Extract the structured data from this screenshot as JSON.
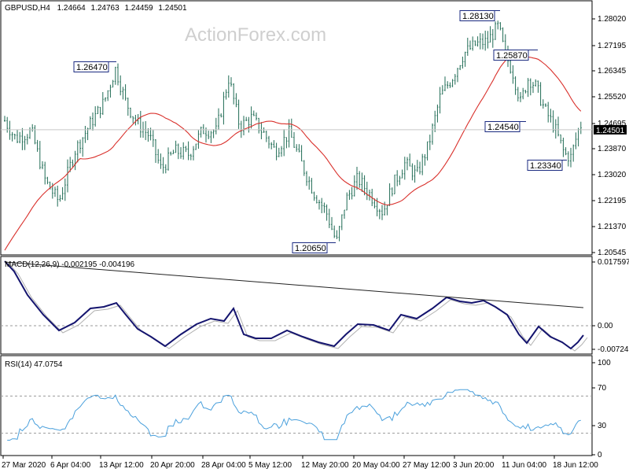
{
  "header": {
    "symbol": "GBPUSD,H4",
    "open": "1.24664",
    "high": "1.24763",
    "low": "1.24459",
    "close": "1.24501"
  },
  "watermark": "ActionForex.com",
  "colors": {
    "candle": "#1f6b54",
    "ma": "#d9302b",
    "macd": "#14146e",
    "macd_signal": "#b0b0b0",
    "rsi": "#4aa0dc",
    "trendline": "#222222",
    "last_price_bg": "#000000",
    "grid": "#c8c8c8"
  },
  "chart_data": [
    {
      "type": "candlestick",
      "panel": "price",
      "y_ticks": [
        "1.28020",
        "1.27195",
        "1.26345",
        "1.25520",
        "1.24695",
        "1.23870",
        "1.23020",
        "1.22195",
        "1.21370",
        "1.20545"
      ],
      "ylim": [
        1.2045,
        1.2865
      ],
      "last_price": "1.24501",
      "overlay_series": "moving-average",
      "levels": [
        {
          "label": "1.26470",
          "value": 1.2647
        },
        {
          "label": "1.28130",
          "value": 1.2813
        },
        {
          "label": "1.25870",
          "value": 1.2587
        },
        {
          "label": "1.24540",
          "value": 1.2454
        },
        {
          "label": "1.23340",
          "value": 1.2334
        },
        {
          "label": "1.20650",
          "value": 1.2065
        }
      ]
    },
    {
      "type": "line",
      "panel": "macd",
      "title": "MACD(12,26,9) -0.002195 -0.004196",
      "y_ticks": [
        "0.017597",
        "0.00",
        "-0.007242"
      ]
    },
    {
      "type": "line",
      "panel": "rsi",
      "title": "RSI(14) 47.0754",
      "y_ticks": [
        "100",
        "70",
        "30",
        "0"
      ],
      "levels": [
        70,
        30
      ]
    }
  ],
  "x_ticks": [
    "27 Mar 2020",
    "6 Apr 04:00",
    "13 Apr 12:00",
    "20 Apr 20:00",
    "28 Apr 04:00",
    "5 May 12:00",
    "12 May 20:00",
    "20 May 04:00",
    "27 May 12:00",
    "3 Jun 20:00",
    "11 Jun 04:00",
    "18 Jun 12:00"
  ]
}
